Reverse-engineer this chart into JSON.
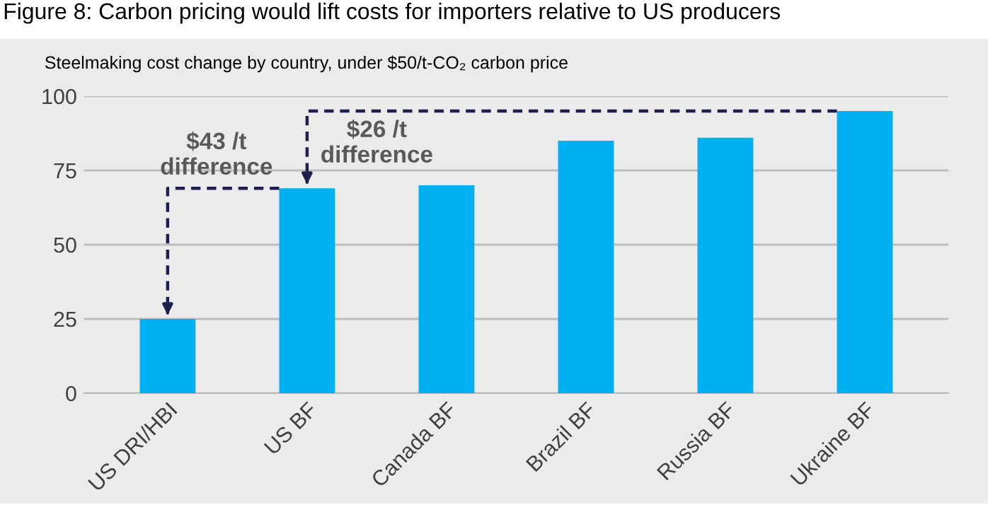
{
  "chart_data": {
    "type": "bar",
    "title": "Figure 8: Carbon pricing would lift costs for importers relative to US producers",
    "subtitle": "Steelmaking cost change by country, under $50/t-CO₂ carbon price",
    "categories": [
      "US DRI/HBI",
      "US BF",
      "Canada BF",
      "Brazil BF",
      "Russia BF",
      "Ukraine BF"
    ],
    "values": [
      25,
      69,
      70,
      85,
      86,
      95
    ],
    "color": "#00b0f0",
    "ylim": [
      0,
      100
    ],
    "yticks": [
      0,
      25,
      50,
      75,
      100
    ],
    "grid": "y",
    "annotations": [
      "$43 /t\ndifference",
      "$26 /t\ndifference"
    ]
  }
}
